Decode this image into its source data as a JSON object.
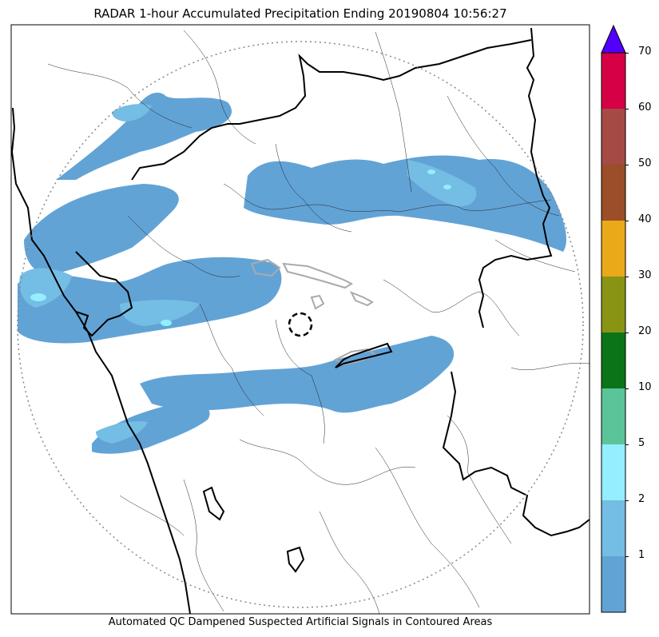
{
  "title": "RADAR 1-hour Accumulated Precipitation Ending 20190804 10:56:27",
  "footer": "Automated QC Dampened Suspected Artificial Signals in Contoured Areas",
  "colorbar": {
    "levels": [
      {
        "min": 0,
        "max": 1,
        "color": "#62a3d6"
      },
      {
        "min": 1,
        "max": 2,
        "color": "#74bde4"
      },
      {
        "min": 2,
        "max": 5,
        "color": "#94eeff"
      },
      {
        "min": 5,
        "max": 10,
        "color": "#5bc499"
      },
      {
        "min": 10,
        "max": 20,
        "color": "#0c7418"
      },
      {
        "min": 20,
        "max": 30,
        "color": "#899415"
      },
      {
        "min": 30,
        "max": 40,
        "color": "#e9a918"
      },
      {
        "min": 40,
        "max": 50,
        "color": "#9b4e28"
      },
      {
        "min": 50,
        "max": 60,
        "color": "#a64a46"
      },
      {
        "min": 60,
        "max": 70,
        "color": "#d50045"
      }
    ],
    "extend_color": "#5100ff",
    "tick_labels": [
      "1",
      "2",
      "5",
      "10",
      "20",
      "30",
      "40",
      "50",
      "60",
      "70"
    ]
  }
}
